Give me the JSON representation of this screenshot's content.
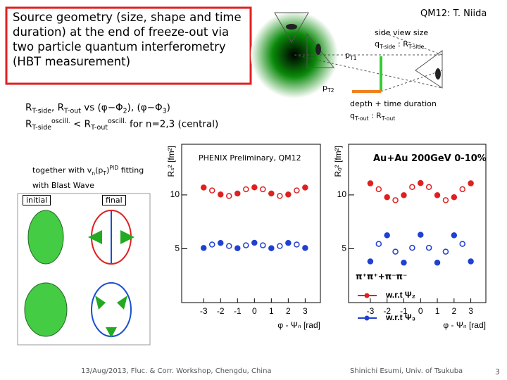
{
  "header": {
    "title": "Source geometry (size, shape and time duration) at the end of freeze-out via two particle quantum interferometry (HBT measurement)",
    "author": "QM12: T. Niida"
  },
  "diagram": {
    "side_label": "side view size",
    "side_q": [
      "q",
      "T-side",
      " : R",
      "T-side"
    ],
    "pT1": [
      "p",
      "T1"
    ],
    "pT2": [
      "p",
      "T2"
    ],
    "depth_label": "depth + time duration",
    "depth_q": [
      "q",
      "T-out",
      " : R",
      "T-out"
    ]
  },
  "notes": {
    "line1": [
      "R",
      "T-side",
      ", R",
      "T-out",
      " vs (φ−Φ",
      "2",
      "), (φ−Φ",
      "3",
      ")"
    ],
    "line2": [
      "R",
      "T-side",
      "oscill.",
      " < R",
      "T-out",
      "oscill.",
      " for n=2,3 (central)"
    ]
  },
  "blast_wave": {
    "caption": [
      "together with v",
      "n",
      "(p",
      "T",
      ")",
      "PID",
      " fitting with Blast Wave"
    ],
    "initial": "initial",
    "final": "final"
  },
  "plots": {
    "preliminary": "PHENIX Preliminary, QM12",
    "system": "Au+Au 200GeV 0-10%",
    "x_label": "φ - Ψₙ [rad]",
    "pair_label": "π⁺π⁺+π⁻π⁻",
    "panels": [
      {
        "y_label": "Rₛ² [fm²]",
        "xlim": [
          -4.3,
          3.9
        ],
        "ylim": [
          0,
          14.7
        ],
        "xticks": [
          -3,
          -2,
          -1,
          0,
          1,
          2,
          3
        ],
        "yticks": [
          5,
          10
        ],
        "x": [
          -3,
          -2.5,
          -2,
          -1.5,
          -1,
          -0.5,
          0,
          0.5,
          1,
          1.5,
          2,
          2.5,
          3
        ],
        "series": [
          {
            "color": "#e02020",
            "values": [
              10.68,
              10.41,
              10.04,
              9.9,
              10.13,
              10.52,
              10.7,
              10.52,
              10.13,
              9.9,
              10.04,
              10.41,
              10.68
            ]
          },
          {
            "color": "#2040d0",
            "values": [
              5.07,
              5.39,
              5.54,
              5.25,
              5.05,
              5.32,
              5.55,
              5.32,
              5.05,
              5.25,
              5.54,
              5.39,
              5.07
            ]
          }
        ]
      },
      {
        "y_label": "Rₒ² [fm²]",
        "xlim": [
          -4.3,
          3.9
        ],
        "ylim": [
          0,
          14.7
        ],
        "xticks": [
          -3,
          -2,
          -1,
          0,
          1,
          2,
          3
        ],
        "yticks": [
          5,
          10
        ],
        "x": [
          -3,
          -2.5,
          -2,
          -1.5,
          -1,
          -0.5,
          0,
          0.5,
          1,
          1.5,
          2,
          2.5,
          3
        ],
        "series": [
          {
            "name": "w.r.t Ψ₂",
            "color": "#e02020",
            "values": [
              11.07,
              10.53,
              9.78,
              9.51,
              9.97,
              10.73,
              11.1,
              10.73,
              9.97,
              9.51,
              9.78,
              10.53,
              11.07
            ]
          },
          {
            "name": "w.r.t Ψ₃",
            "color": "#2040d0",
            "values": [
              3.82,
              5.45,
              6.25,
              4.73,
              3.71,
              5.09,
              6.3,
              5.09,
              3.71,
              4.73,
              6.25,
              5.45,
              3.82
            ]
          }
        ]
      }
    ]
  },
  "footer": {
    "left": "13/Aug/2013, Fluc. & Corr. Workshop, Chengdu, China",
    "center": "Shinichi Esumi, Univ. of Tsukuba",
    "page": "3"
  }
}
